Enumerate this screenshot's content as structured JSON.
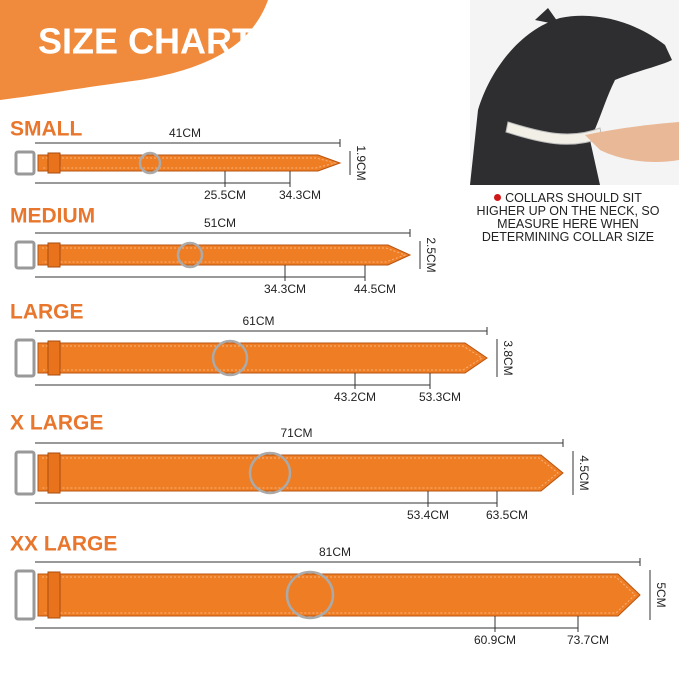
{
  "title": "SIZE CHART",
  "note": "COLLARS SHOULD SIT HIGHER UP ON THE NECK, SO MEASURE HERE WHEN DETERMINING COLLAR SIZE",
  "sizes": [
    {
      "name": "SMALL",
      "length": "41CM",
      "min": "25.5CM",
      "max": "34.3CM",
      "width": "1.9CM"
    },
    {
      "name": "MEDIUM",
      "length": "51CM",
      "min": "34.3CM",
      "max": "44.5CM",
      "width": "2.5CM"
    },
    {
      "name": "LARGE",
      "length": "61CM",
      "min": "43.2CM",
      "max": "53.3CM",
      "width": "3.8CM"
    },
    {
      "name": "X LARGE",
      "length": "71CM",
      "min": "53.4CM",
      "max": "63.5CM",
      "width": "4.5CM"
    },
    {
      "name": "XX LARGE",
      "length": "81CM",
      "min": "60.9CM",
      "max": "73.7CM",
      "width": "5CM"
    }
  ]
}
